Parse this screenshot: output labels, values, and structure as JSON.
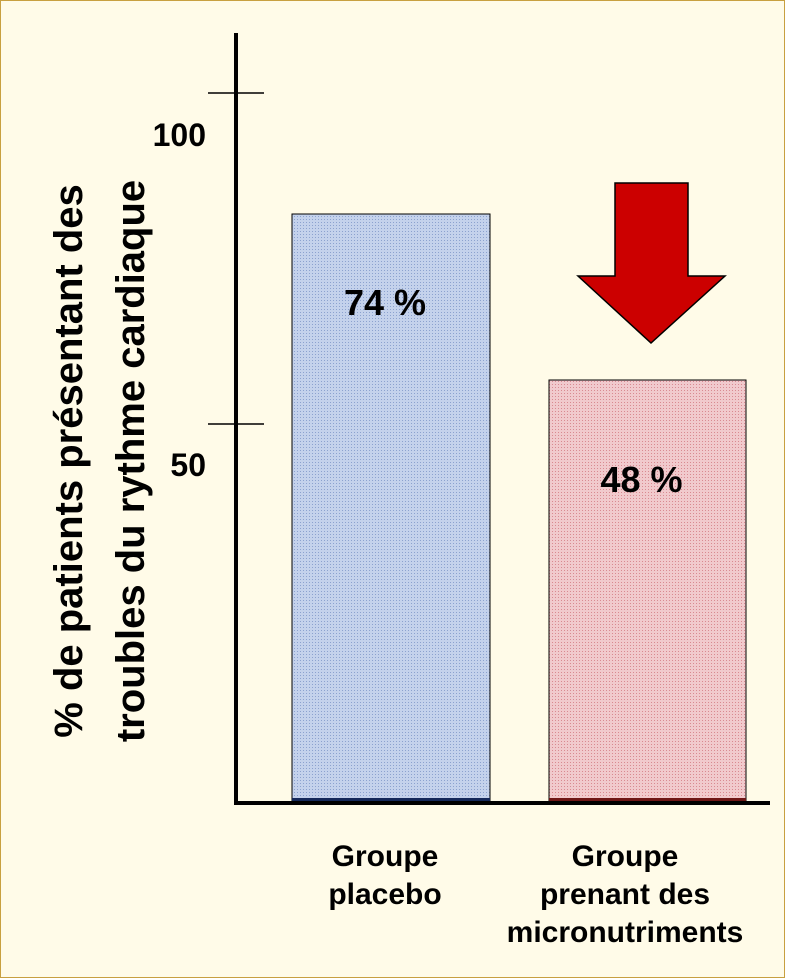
{
  "chart_data": {
    "type": "bar",
    "ylabel_lines": [
      "% de patients présentant des",
      "troubles du rythme cardiaque"
    ],
    "xlabel": "",
    "ylim": [
      0,
      100
    ],
    "yticks": [
      {
        "value": 50,
        "label": "50"
      },
      {
        "value": 100,
        "label": "100"
      }
    ],
    "categories": [
      {
        "lines": [
          "Groupe",
          "placebo"
        ]
      },
      {
        "lines": [
          "Groupe",
          "prenant des",
          "micronutriments"
        ]
      }
    ],
    "values": [
      74,
      48
    ],
    "data_labels": [
      "74 %",
      "48 %"
    ],
    "bar_colors": [
      "#b8c8e4",
      "#ecc0c4"
    ],
    "bar_base_colors": [
      "#15295a",
      "#6e1616"
    ],
    "arrow": {
      "color": "#cc0000",
      "direction": "down",
      "points_to": "48 %"
    },
    "grid": false,
    "legend": "none"
  }
}
